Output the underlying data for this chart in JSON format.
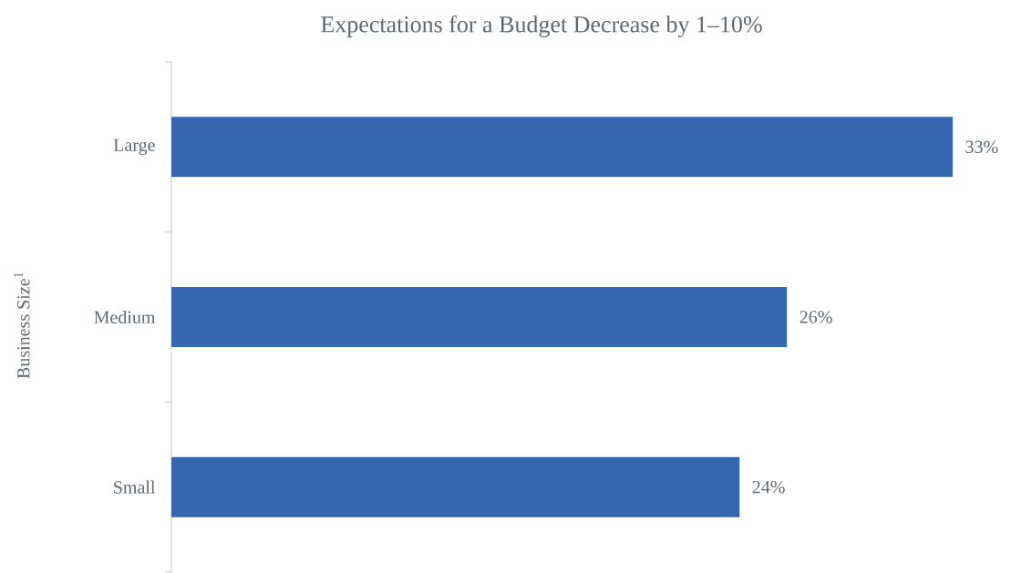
{
  "chart_data": {
    "type": "bar",
    "orientation": "horizontal",
    "title": "Expectations for a Budget Decrease by 1–10%",
    "ylabel": "Business Size$^{1}$",
    "categories": [
      "Large",
      "Medium",
      "Small"
    ],
    "values": [
      33,
      26,
      24
    ],
    "value_labels": [
      "33%",
      "26%",
      "24%"
    ],
    "color": "#3566b0"
  }
}
